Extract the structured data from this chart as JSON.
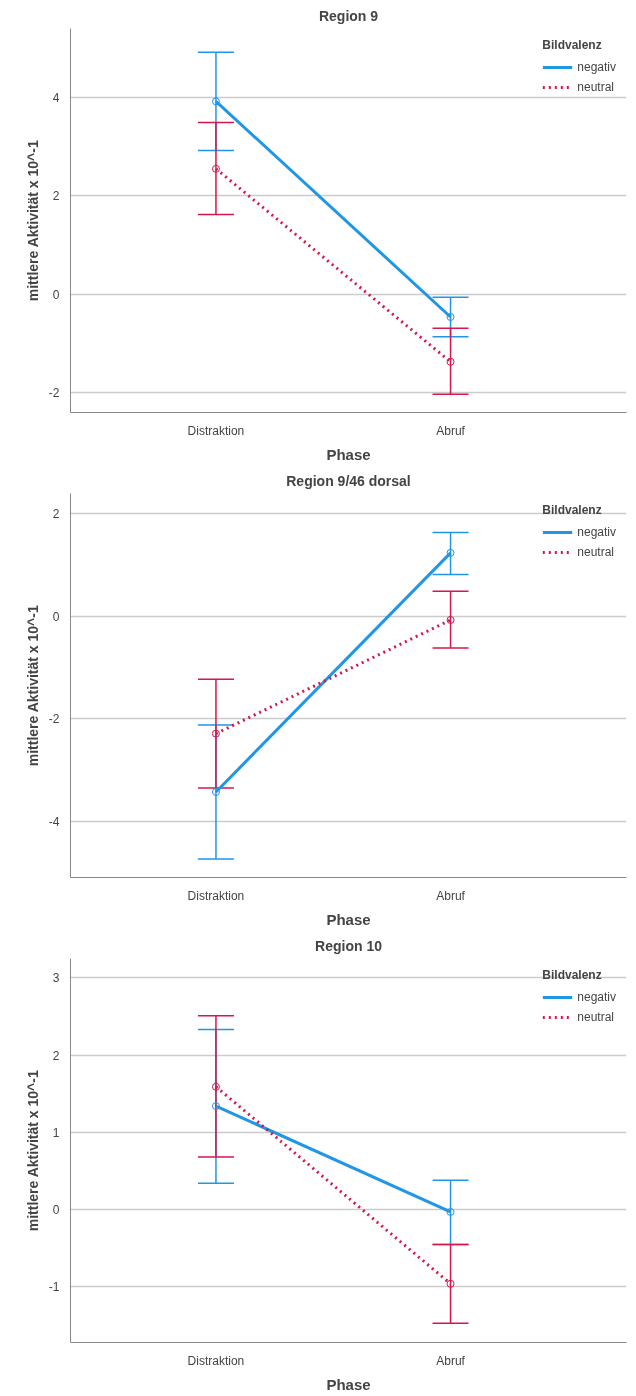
{
  "chart_data": [
    {
      "type": "line",
      "title": "Region 9",
      "xlabel": "Phase",
      "ylabel": "mittlere Aktivität x 10^-1",
      "legend_title": "Bildvalenz",
      "legend": "top right",
      "grid": "y",
      "marker": "circle",
      "categories": [
        "Distraktion",
        "Abruf"
      ],
      "ylim": [
        -2.4,
        5.4
      ],
      "yticks": [
        -2,
        0,
        2,
        4
      ],
      "series": [
        {
          "name": "negativ",
          "color": "#1f96e6",
          "line_style": "solid",
          "values": [
            3.92,
            -0.46
          ],
          "errors": [
            [
              2.92,
              4.92
            ],
            [
              -0.86,
              -0.06
            ]
          ]
        },
        {
          "name": "neutral",
          "color": "#d6174a",
          "line_style": "dotted",
          "values": [
            2.55,
            -1.37
          ],
          "errors": [
            [
              1.62,
              3.49
            ],
            [
              -2.03,
              -0.69
            ]
          ]
        }
      ]
    },
    {
      "type": "line",
      "title": "Region 9/46 dorsal",
      "xlabel": "Phase",
      "ylabel": "mittlere Aktivität x 10^-1",
      "legend_title": "Bildvalenz",
      "legend": "top right",
      "grid": "y",
      "marker": "circle",
      "categories": [
        "Distraktion",
        "Abruf"
      ],
      "ylim": [
        -5.1,
        2.4
      ],
      "yticks": [
        -4,
        -2,
        0,
        2
      ],
      "series": [
        {
          "name": "negativ",
          "color": "#1f96e6",
          "line_style": "solid",
          "values": [
            -3.43,
            1.24
          ],
          "errors": [
            [
              -4.74,
              -2.12
            ],
            [
              0.82,
              1.64
            ]
          ]
        },
        {
          "name": "neutral",
          "color": "#d6174a",
          "line_style": "dotted",
          "values": [
            -2.29,
            -0.07
          ],
          "errors": [
            [
              -3.35,
              -1.23
            ],
            [
              -0.62,
              0.49
            ]
          ]
        }
      ]
    },
    {
      "type": "line",
      "title": "Region 10",
      "xlabel": "Phase",
      "ylabel": "mittlere Aktivität x 10^-1",
      "legend_title": "Bildvalenz",
      "legend": "top right",
      "grid": "y",
      "marker": "circle",
      "categories": [
        "Distraktion",
        "Abruf"
      ],
      "ylim": [
        -1.72,
        3.25
      ],
      "yticks": [
        -1,
        0,
        1,
        2,
        3
      ],
      "series": [
        {
          "name": "negativ",
          "color": "#1f96e6",
          "line_style": "solid",
          "values": [
            1.34,
            -0.03
          ],
          "errors": [
            [
              0.34,
              2.33
            ],
            [
              -0.45,
              0.38
            ]
          ]
        },
        {
          "name": "neutral",
          "color": "#d6174a",
          "line_style": "dotted",
          "values": [
            1.59,
            -0.96
          ],
          "errors": [
            [
              0.68,
              2.51
            ],
            [
              -1.47,
              -0.45
            ]
          ]
        }
      ]
    }
  ]
}
